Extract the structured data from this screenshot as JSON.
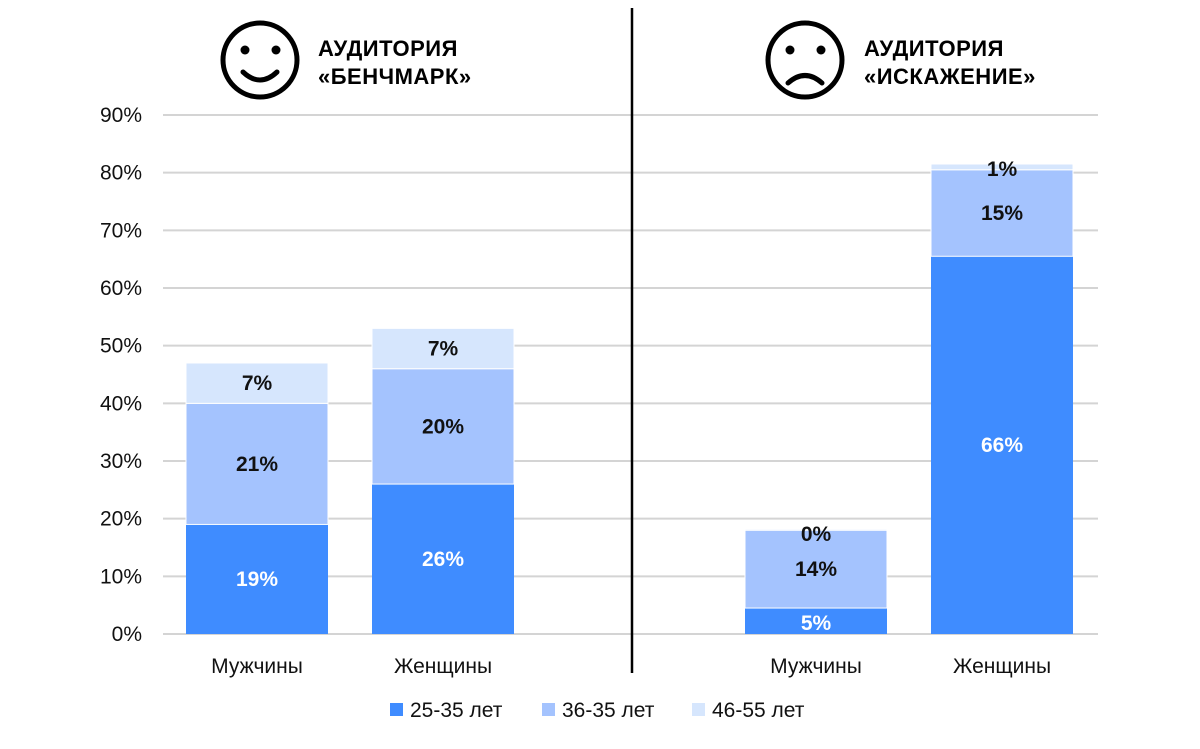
{
  "chart_data": {
    "type": "bar",
    "stacked": true,
    "ylim": [
      0,
      90
    ],
    "yticks": [
      0,
      10,
      20,
      30,
      40,
      50,
      60,
      70,
      80,
      90
    ],
    "ytick_suffix": "%",
    "grid": true,
    "legend_position": "bottom",
    "series": [
      {
        "name": "25-35 лет",
        "color": "#3f8cff"
      },
      {
        "name": "36-35 лет",
        "color": "#a4c3fe"
      },
      {
        "name": "46-55 лет",
        "color": "#d6e6fd"
      }
    ],
    "panels": [
      {
        "title_line1": "АУДИТОРИЯ",
        "title_line2": "«БЕНЧМАРК»",
        "icon": "happy-face-icon",
        "categories": [
          "Мужчины",
          "Женщины"
        ],
        "values": [
          [
            19,
            21,
            7
          ],
          [
            26,
            20,
            7
          ]
        ],
        "labels": [
          [
            "19%",
            "21%",
            "7%"
          ],
          [
            "26%",
            "20%",
            "7%"
          ]
        ]
      },
      {
        "title_line1": "АУДИТОРИЯ",
        "title_line2": "«ИСКАЖЕНИЕ»",
        "icon": "sad-face-icon",
        "categories": [
          "Мужчины",
          "Женщины"
        ],
        "values": [
          [
            4.5,
            13.5,
            0.2
          ],
          [
            65.5,
            15,
            1
          ]
        ],
        "labels": [
          [
            "5%",
            "14%",
            "0%"
          ],
          [
            "66%",
            "15%",
            "1%"
          ]
        ]
      }
    ]
  }
}
